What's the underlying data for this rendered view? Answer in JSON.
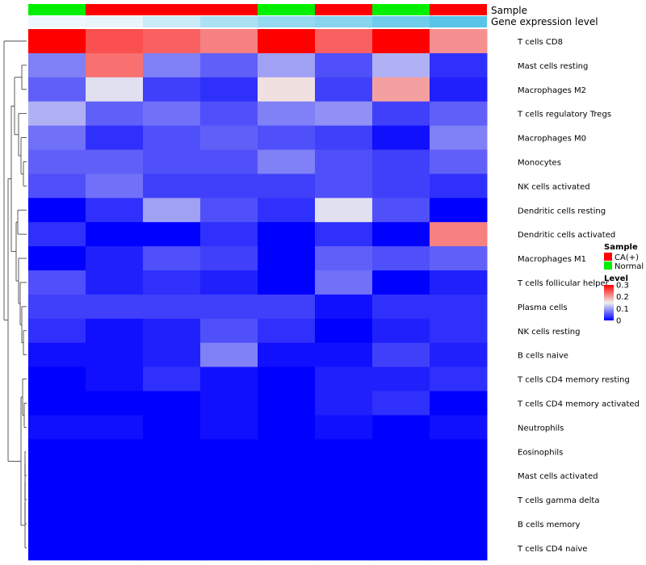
{
  "chart_data": {
    "type": "heatmap",
    "title": "",
    "annotation_tracks": [
      {
        "name": "Sample",
        "values": [
          "Normal",
          "CA(+)",
          "CA(+)",
          "CA(+)",
          "Normal",
          "CA(+)",
          "Normal",
          "CA(+)"
        ]
      },
      {
        "name": "Gene expression level",
        "values": [
          0.02,
          0.05,
          0.25,
          0.45,
          0.6,
          0.7,
          0.85,
          1.0
        ]
      }
    ],
    "sample_colors": {
      "CA(+)": "#ff0000",
      "Normal": "#00ee00"
    },
    "rows": [
      {
        "name": "T cells CD8",
        "values": [
          0.31,
          0.25,
          0.24,
          0.22,
          0.31,
          0.24,
          0.31,
          0.21
        ]
      },
      {
        "name": "Mast cells resting",
        "values": [
          0.08,
          0.23,
          0.08,
          0.06,
          0.1,
          0.05,
          0.11,
          0.03
        ]
      },
      {
        "name": "Macrophages M2",
        "values": [
          0.06,
          0.14,
          0.04,
          0.03,
          0.16,
          0.04,
          0.2,
          0.02
        ]
      },
      {
        "name": "T cells regulatory  Tregs",
        "values": [
          0.11,
          0.06,
          0.07,
          0.05,
          0.08,
          0.09,
          0.04,
          0.06
        ]
      },
      {
        "name": "Macrophages M0",
        "values": [
          0.07,
          0.03,
          0.05,
          0.06,
          0.05,
          0.04,
          0.01,
          0.08
        ]
      },
      {
        "name": "Monocytes",
        "values": [
          0.06,
          0.06,
          0.05,
          0.05,
          0.08,
          0.05,
          0.04,
          0.06
        ]
      },
      {
        "name": "NK cells activated",
        "values": [
          0.05,
          0.07,
          0.04,
          0.04,
          0.04,
          0.05,
          0.04,
          0.03
        ]
      },
      {
        "name": "Dendritic cells resting",
        "values": [
          0.0,
          0.03,
          0.1,
          0.05,
          0.03,
          0.14,
          0.05,
          0.0
        ]
      },
      {
        "name": "Dendritic cells activated",
        "values": [
          0.03,
          0.0,
          0.0,
          0.03,
          0.0,
          0.03,
          0.0,
          0.22
        ]
      },
      {
        "name": "Macrophages M1",
        "values": [
          0.0,
          0.02,
          0.05,
          0.04,
          0.0,
          0.06,
          0.05,
          0.06
        ]
      },
      {
        "name": "T cells follicular helper",
        "values": [
          0.05,
          0.02,
          0.03,
          0.02,
          0.0,
          0.07,
          0.0,
          0.02
        ]
      },
      {
        "name": "Plasma cells",
        "values": [
          0.04,
          0.04,
          0.04,
          0.04,
          0.04,
          0.01,
          0.03,
          0.03
        ]
      },
      {
        "name": "NK cells resting",
        "values": [
          0.03,
          0.01,
          0.02,
          0.05,
          0.03,
          0.0,
          0.02,
          0.03
        ]
      },
      {
        "name": "B cells naive",
        "values": [
          0.01,
          0.01,
          0.02,
          0.08,
          0.01,
          0.01,
          0.04,
          0.02
        ]
      },
      {
        "name": "T cells CD4 memory resting",
        "values": [
          0.0,
          0.01,
          0.03,
          0.01,
          0.0,
          0.02,
          0.02,
          0.03
        ]
      },
      {
        "name": "T cells CD4 memory activated",
        "values": [
          0.0,
          0.0,
          0.0,
          0.01,
          0.0,
          0.02,
          0.03,
          0.0
        ]
      },
      {
        "name": "Neutrophils",
        "values": [
          0.01,
          0.01,
          0.0,
          0.01,
          0.0,
          0.01,
          0.0,
          0.01
        ]
      },
      {
        "name": "Eosinophils",
        "values": [
          0,
          0,
          0,
          0,
          0,
          0,
          0,
          0
        ]
      },
      {
        "name": "Mast cells activated",
        "values": [
          0,
          0,
          0,
          0,
          0,
          0,
          0,
          0
        ]
      },
      {
        "name": "T cells gamma delta",
        "values": [
          0,
          0,
          0,
          0,
          0,
          0,
          0,
          0
        ]
      },
      {
        "name": "B cells memory",
        "values": [
          0,
          0,
          0,
          0,
          0,
          0,
          0,
          0
        ]
      },
      {
        "name": "T cells CD4 naive",
        "values": [
          0,
          0,
          0,
          0,
          0,
          0,
          0,
          0
        ]
      }
    ],
    "color_scale": {
      "name": "Level",
      "min": 0,
      "max": 0.3,
      "stops": [
        {
          "value": 0,
          "color": "#0000ff"
        },
        {
          "value": 0.15,
          "color": "#f0f0f0"
        },
        {
          "value": 0.3,
          "color": "#ff0000"
        }
      ],
      "ticks": [
        "0.3",
        "0.2",
        "0.1",
        "0"
      ]
    },
    "legend": {
      "sample_title": "Sample",
      "sample_entries": [
        "CA(+)",
        "Normal"
      ],
      "placement": "right"
    },
    "dendrogram": "rows"
  }
}
